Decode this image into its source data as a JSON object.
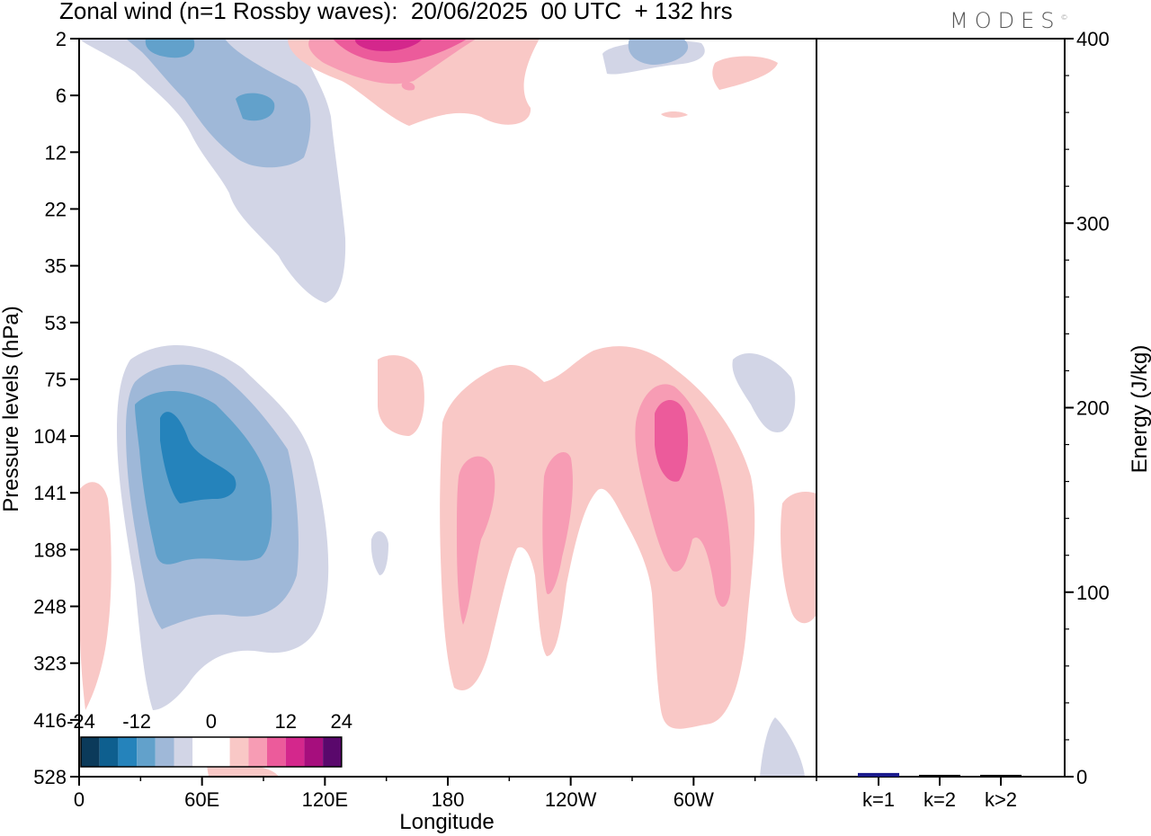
{
  "title": "Zonal wind (n=1 Rossby waves):  20/06/2025  00 UTC  + 132 hrs",
  "brand": "MODES",
  "brand_mark": "©",
  "chart_data": [
    {
      "type": "heatmap",
      "title": "Zonal wind (n=1 Rossby waves):  20/06/2025  00 UTC  + 132 hrs",
      "xlabel": "Longitude",
      "ylabel": "Pressure levels (hPa)",
      "x_ticks": [
        "0",
        "60E",
        "120E",
        "180",
        "120W",
        "60W"
      ],
      "x_tick_degrees": [
        0,
        60,
        120,
        180,
        240,
        300
      ],
      "xlim": [
        0,
        360
      ],
      "y_levels_hpa": [
        2,
        6,
        12,
        22,
        35,
        53,
        75,
        104,
        141,
        188,
        248,
        323,
        416,
        528
      ],
      "y_inverted": true,
      "colorbar": {
        "labels": [
          "-24",
          "-12",
          "0",
          "12",
          "24"
        ],
        "colors": [
          "#0b3a5a",
          "#0e5f8f",
          "#2583bb",
          "#62a1cb",
          "#9fb8d8",
          "#d2d5e6",
          "#ffffff",
          "#ffffff",
          "#f9c8c6",
          "#f79cb4",
          "#ec5b9b",
          "#d4278c",
          "#a60e7d",
          "#5a086c"
        ]
      },
      "regions": [
        {
          "lon": [
            0,
            130
          ],
          "lev": [
            2,
            53
          ],
          "sign": "negative",
          "peak": -15
        },
        {
          "lon": [
            120,
            230
          ],
          "lev": [
            2,
            12
          ],
          "sign": "positive",
          "peak": 24
        },
        {
          "lon": [
            25,
            120
          ],
          "lev": [
            53,
            500
          ],
          "sign": "negative",
          "peak": -18
        },
        {
          "lon": [
            175,
            330
          ],
          "lev": [
            53,
            400
          ],
          "sign": "positive",
          "peak": 12
        },
        {
          "lon": [
            315,
            360
          ],
          "lev": [
            104,
            300
          ],
          "sign": "positive",
          "peak": 4
        },
        {
          "lon": [
            0,
            15
          ],
          "lev": [
            141,
            350
          ],
          "sign": "positive",
          "peak": 4
        }
      ]
    },
    {
      "type": "bar",
      "ylabel": "Energy (J/kg)",
      "ylim": [
        0,
        400
      ],
      "y_ticks": [
        "0",
        "100",
        "200",
        "300",
        "400"
      ],
      "categories": [
        "k=1",
        "k=2",
        "k>2"
      ],
      "values": [
        2,
        1,
        1
      ],
      "colors": [
        "#1a1a8c",
        "#000000",
        "#000000"
      ]
    }
  ]
}
